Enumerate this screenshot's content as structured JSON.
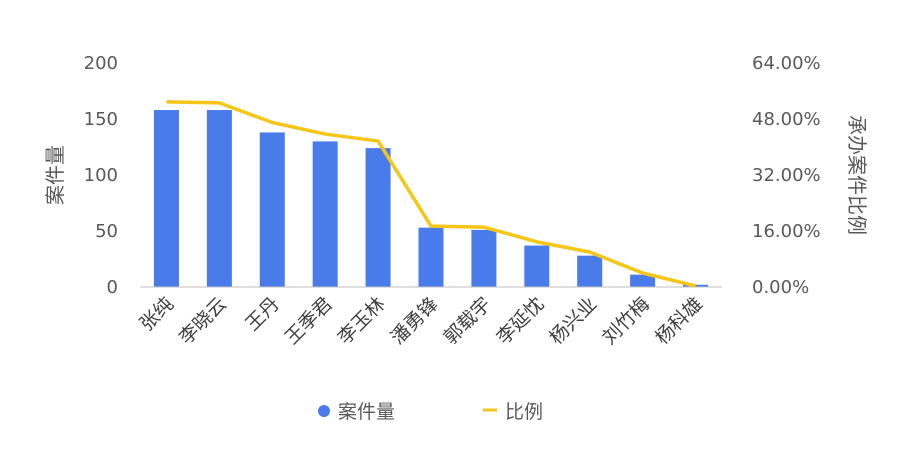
{
  "chart_data": {
    "type": "bar",
    "categories": [
      "张纯",
      "李晓云",
      "王丹",
      "王季君",
      "李玉林",
      "潘勇锋",
      "郭载宇",
      "李延忱",
      "杨兴业",
      "刘竹梅",
      "杨科雄"
    ],
    "series": [
      {
        "name": "案件量",
        "type": "bar",
        "axis": "left",
        "color": "#4a7bea",
        "values": [
          158,
          158,
          138,
          130,
          124,
          53,
          51,
          37,
          28,
          11,
          2
        ]
      },
      {
        "name": "比例",
        "type": "line",
        "axis": "right",
        "color": "#f5c518",
        "values": [
          0.529,
          0.526,
          0.47,
          0.437,
          0.417,
          0.174,
          0.171,
          0.129,
          0.1,
          0.04,
          0.003
        ]
      }
    ],
    "ylabel": "案件量",
    "y2label": "承办案件比例",
    "ylim": [
      0,
      200
    ],
    "y2lim": [
      0,
      0.64
    ],
    "yticks": [
      "0",
      "50",
      "100",
      "150",
      "200"
    ],
    "y2ticks": [
      "0.00%",
      "16.00%",
      "32.00%",
      "48.00%",
      "64.00%"
    ],
    "grid": false,
    "legend": "bottom"
  }
}
